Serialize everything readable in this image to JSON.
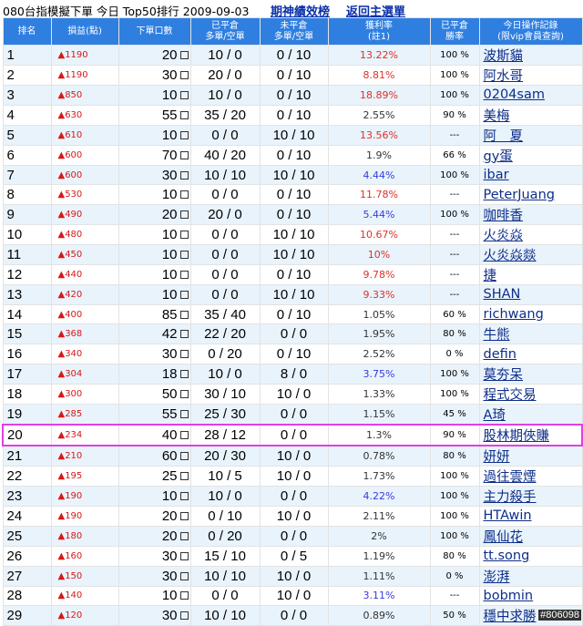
{
  "header": {
    "title": "080台指模擬下單 今日 Top50排行 2009-09-03",
    "link_history": "期神績效榜",
    "link_back": "返回主選單"
  },
  "columns": {
    "rank": "排名",
    "pl": "損益(點)",
    "lots": "下單口數",
    "closed_1": "已平倉",
    "closed_2": "多單/空單",
    "open_1": "未平倉",
    "open_2": "多單/空單",
    "roi_1": "獲利率",
    "roi_2": "(註1)",
    "winrate_1": "已平倉",
    "winrate_2": "勝率",
    "record_1": "今日操作記錄",
    "record_2": "(限vip會員查詢)"
  },
  "colors": {
    "header_bg": "#2f7fe0",
    "row_blue": "#e9f3fb",
    "profit_red": "#d81818",
    "link_blue": "#0d2e8a",
    "highlight": "#e040e0"
  },
  "rows": [
    {
      "rank": "1",
      "pl": "▲1190",
      "lots": "20",
      "closed": "10 / 0",
      "open": "0 / 10",
      "roi": "13.22%",
      "roi_color": "red",
      "win": "100 %",
      "name": "波斯貓"
    },
    {
      "rank": "2",
      "pl": "▲1190",
      "lots": "30",
      "closed": "20 / 0",
      "open": "0 / 10",
      "roi": "8.81%",
      "roi_color": "red",
      "win": "100 %",
      "name": "阿水哥"
    },
    {
      "rank": "3",
      "pl": "▲850",
      "lots": "10",
      "closed": "10 / 0",
      "open": "0 / 10",
      "roi": "18.89%",
      "roi_color": "red",
      "win": "100 %",
      "name": "0204sam"
    },
    {
      "rank": "4",
      "pl": "▲630",
      "lots": "55",
      "closed": "35 / 20",
      "open": "0 / 10",
      "roi": "2.55%",
      "roi_color": "black",
      "win": "90 %",
      "name": "美梅"
    },
    {
      "rank": "5",
      "pl": "▲610",
      "lots": "10",
      "closed": "0 / 0",
      "open": "10 / 10",
      "roi": "13.56%",
      "roi_color": "red",
      "win": "---",
      "name": "阿　夏"
    },
    {
      "rank": "6",
      "pl": "▲600",
      "lots": "70",
      "closed": "40 / 20",
      "open": "0 / 10",
      "roi": "1.9%",
      "roi_color": "black",
      "win": "66 %",
      "name": "gy蛋"
    },
    {
      "rank": "7",
      "pl": "▲600",
      "lots": "30",
      "closed": "10 / 10",
      "open": "10 / 10",
      "roi": "4.44%",
      "roi_color": "blue",
      "win": "100 %",
      "name": "ibar"
    },
    {
      "rank": "8",
      "pl": "▲530",
      "lots": "10",
      "closed": "0 / 0",
      "open": "0 / 10",
      "roi": "11.78%",
      "roi_color": "red",
      "win": "---",
      "name": "PeterJuang"
    },
    {
      "rank": "9",
      "pl": "▲490",
      "lots": "20",
      "closed": "20 / 0",
      "open": "0 / 10",
      "roi": "5.44%",
      "roi_color": "blue",
      "win": "100 %",
      "name": "咖啡香"
    },
    {
      "rank": "10",
      "pl": "▲480",
      "lots": "10",
      "closed": "0 / 0",
      "open": "10 / 10",
      "roi": "10.67%",
      "roi_color": "red",
      "win": "---",
      "name": "火炎焱"
    },
    {
      "rank": "11",
      "pl": "▲450",
      "lots": "10",
      "closed": "0 / 0",
      "open": "10 / 10",
      "roi": "10%",
      "roi_color": "red",
      "win": "---",
      "name": "火炎焱燚"
    },
    {
      "rank": "12",
      "pl": "▲440",
      "lots": "10",
      "closed": "0 / 0",
      "open": "0 / 10",
      "roi": "9.78%",
      "roi_color": "red",
      "win": "---",
      "name": "捷"
    },
    {
      "rank": "13",
      "pl": "▲420",
      "lots": "10",
      "closed": "0 / 0",
      "open": "10 / 10",
      "roi": "9.33%",
      "roi_color": "red",
      "win": "---",
      "name": "SHAN"
    },
    {
      "rank": "14",
      "pl": "▲400",
      "lots": "85",
      "closed": "35 / 40",
      "open": "0 / 10",
      "roi": "1.05%",
      "roi_color": "black",
      "win": "60 %",
      "name": "richwang"
    },
    {
      "rank": "15",
      "pl": "▲368",
      "lots": "42",
      "closed": "22 / 20",
      "open": "0 / 0",
      "roi": "1.95%",
      "roi_color": "black",
      "win": "80 %",
      "name": "牛熊"
    },
    {
      "rank": "16",
      "pl": "▲340",
      "lots": "30",
      "closed": "0 / 20",
      "open": "0 / 10",
      "roi": "2.52%",
      "roi_color": "black",
      "win": "0 %",
      "name": "defin"
    },
    {
      "rank": "17",
      "pl": "▲304",
      "lots": "18",
      "closed": "10 / 0",
      "open": "8 / 0",
      "roi": "3.75%",
      "roi_color": "blue",
      "win": "100 %",
      "name": "莫夯呆"
    },
    {
      "rank": "18",
      "pl": "▲300",
      "lots": "50",
      "closed": "30 / 10",
      "open": "10 / 0",
      "roi": "1.33%",
      "roi_color": "black",
      "win": "100 %",
      "name": "程式交易"
    },
    {
      "rank": "19",
      "pl": "▲285",
      "lots": "55",
      "closed": "25 / 30",
      "open": "0 / 0",
      "roi": "1.15%",
      "roi_color": "black",
      "win": "45 %",
      "name": "A琦"
    },
    {
      "rank": "20",
      "pl": "▲234",
      "lots": "40",
      "closed": "28 / 12",
      "open": "0 / 0",
      "roi": "1.3%",
      "roi_color": "black",
      "win": "90 %",
      "name": "股林期俠賺"
    },
    {
      "rank": "21",
      "pl": "▲210",
      "lots": "60",
      "closed": "20 / 30",
      "open": "10 / 0",
      "roi": "0.78%",
      "roi_color": "black",
      "win": "80 %",
      "name": "妍妍"
    },
    {
      "rank": "22",
      "pl": "▲195",
      "lots": "25",
      "closed": "10 / 5",
      "open": "10 / 0",
      "roi": "1.73%",
      "roi_color": "black",
      "win": "100 %",
      "name": "過往雲煙"
    },
    {
      "rank": "23",
      "pl": "▲190",
      "lots": "10",
      "closed": "10 / 0",
      "open": "0 / 0",
      "roi": "4.22%",
      "roi_color": "blue",
      "win": "100 %",
      "name": "主力殺手"
    },
    {
      "rank": "24",
      "pl": "▲190",
      "lots": "20",
      "closed": "0 / 10",
      "open": "10 / 0",
      "roi": "2.11%",
      "roi_color": "black",
      "win": "100 %",
      "name": "HTAwin"
    },
    {
      "rank": "25",
      "pl": "▲180",
      "lots": "20",
      "closed": "0 / 20",
      "open": "0 / 0",
      "roi": "2%",
      "roi_color": "black",
      "win": "100 %",
      "name": "鳳仙花"
    },
    {
      "rank": "26",
      "pl": "▲160",
      "lots": "30",
      "closed": "15 / 10",
      "open": "0 / 5",
      "roi": "1.19%",
      "roi_color": "black",
      "win": "80 %",
      "name": "tt.song"
    },
    {
      "rank": "27",
      "pl": "▲150",
      "lots": "30",
      "closed": "10 / 10",
      "open": "10 / 0",
      "roi": "1.11%",
      "roi_color": "black",
      "win": "0 %",
      "name": "澎湃"
    },
    {
      "rank": "28",
      "pl": "▲140",
      "lots": "10",
      "closed": "0 / 0",
      "open": "10 / 0",
      "roi": "3.11%",
      "roi_color": "blue",
      "win": "---",
      "name": "bobmin"
    },
    {
      "rank": "29",
      "pl": "▲120",
      "lots": "30",
      "closed": "10 / 10",
      "open": "0 / 0",
      "roi": "0.89%",
      "roi_color": "black",
      "win": "50 %",
      "name": "穩中求勝"
    }
  ],
  "highlight_rank": "20",
  "watermark": "#806098"
}
